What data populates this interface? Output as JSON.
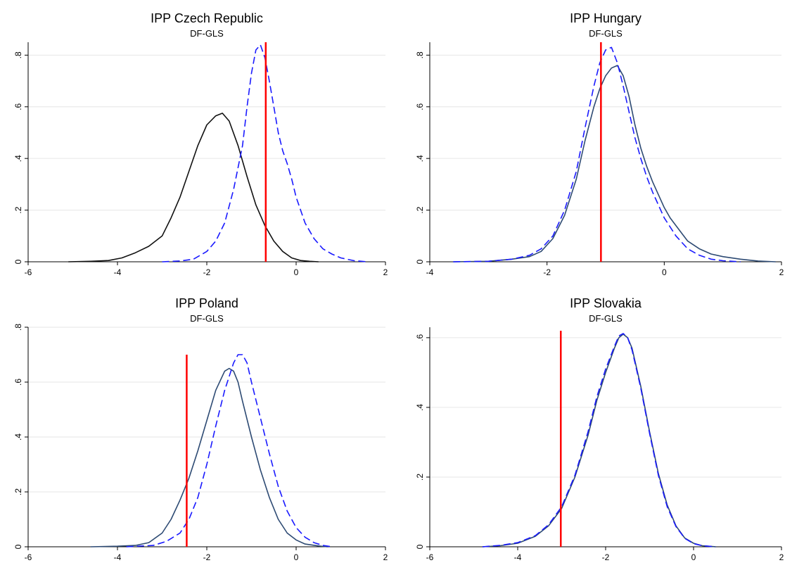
{
  "chart_data": [
    {
      "type": "line",
      "title": "IPP Czech Republic",
      "subtitle": "DF-GLS",
      "xlim": [
        -6,
        2
      ],
      "ylim": [
        0,
        0.85
      ],
      "xticks": [
        -6,
        -4,
        -2,
        0,
        2
      ],
      "xtick_labels": [
        "-6",
        "-4",
        "-2",
        "0",
        "2"
      ],
      "yticks": [
        0,
        0.2,
        0.4,
        0.6,
        0.8
      ],
      "ytick_labels": [
        "0",
        ".2",
        ".4",
        ".6",
        ".8"
      ],
      "grid": "horizontal",
      "legend": "none",
      "series": [
        {
          "style": "solid",
          "color": "#111111",
          "x": [
            -5.1,
            -4.6,
            -4.2,
            -3.9,
            -3.6,
            -3.3,
            -3.0,
            -2.8,
            -2.6,
            -2.4,
            -2.2,
            -2.0,
            -1.8,
            -1.65,
            -1.5,
            -1.3,
            -1.1,
            -0.9,
            -0.7,
            -0.5,
            -0.3,
            -0.1,
            0.1,
            0.3,
            0.5
          ],
          "y": [
            0.0,
            0.002,
            0.005,
            0.015,
            0.035,
            0.06,
            0.1,
            0.17,
            0.25,
            0.35,
            0.45,
            0.53,
            0.565,
            0.575,
            0.545,
            0.45,
            0.33,
            0.22,
            0.14,
            0.08,
            0.04,
            0.015,
            0.005,
            0.002,
            0.0
          ]
        },
        {
          "style": "dashed",
          "color": "#1a1aff",
          "x": [
            -3.0,
            -2.6,
            -2.3,
            -2.0,
            -1.8,
            -1.6,
            -1.4,
            -1.2,
            -1.1,
            -1.0,
            -0.9,
            -0.8,
            -0.7,
            -0.6,
            -0.5,
            -0.4,
            -0.3,
            -0.2,
            -0.1,
            0.0,
            0.2,
            0.4,
            0.6,
            0.8,
            1.0,
            1.3,
            1.6
          ],
          "y": [
            0.0,
            0.003,
            0.01,
            0.04,
            0.08,
            0.15,
            0.28,
            0.45,
            0.6,
            0.73,
            0.82,
            0.84,
            0.79,
            0.7,
            0.6,
            0.5,
            0.43,
            0.38,
            0.32,
            0.25,
            0.15,
            0.09,
            0.05,
            0.03,
            0.015,
            0.004,
            0.0
          ]
        }
      ],
      "vline": {
        "x": -0.68,
        "y": [
          0,
          0.85
        ],
        "color": "#ff0000"
      }
    },
    {
      "type": "line",
      "title": "IPP Hungary",
      "subtitle": "DF-GLS",
      "xlim": [
        -4,
        2
      ],
      "ylim": [
        0,
        0.85
      ],
      "xticks": [
        -4,
        -2,
        0,
        2
      ],
      "xtick_labels": [
        "-4",
        "-2",
        "0",
        "2"
      ],
      "yticks": [
        0,
        0.2,
        0.4,
        0.6,
        0.8
      ],
      "ytick_labels": [
        "0",
        ".2",
        ".4",
        ".6",
        ".8"
      ],
      "grid": "horizontal",
      "legend": "none",
      "series": [
        {
          "style": "solid",
          "color": "#2d4a73",
          "x": [
            -3.6,
            -3.0,
            -2.6,
            -2.3,
            -2.1,
            -1.9,
            -1.7,
            -1.5,
            -1.35,
            -1.2,
            -1.1,
            -1.0,
            -0.9,
            -0.8,
            -0.7,
            -0.6,
            -0.5,
            -0.4,
            -0.3,
            -0.2,
            -0.1,
            0.0,
            0.1,
            0.2,
            0.3,
            0.4,
            0.6,
            0.8,
            1.0,
            1.3,
            1.6,
            1.9
          ],
          "y": [
            0.0,
            0.002,
            0.01,
            0.02,
            0.04,
            0.09,
            0.18,
            0.32,
            0.47,
            0.6,
            0.67,
            0.72,
            0.75,
            0.76,
            0.72,
            0.64,
            0.53,
            0.44,
            0.37,
            0.31,
            0.26,
            0.21,
            0.17,
            0.14,
            0.11,
            0.08,
            0.05,
            0.03,
            0.02,
            0.01,
            0.003,
            0.0
          ]
        },
        {
          "style": "dashed",
          "color": "#1a1aff",
          "x": [
            -3.6,
            -3.0,
            -2.6,
            -2.3,
            -2.1,
            -1.9,
            -1.7,
            -1.5,
            -1.35,
            -1.2,
            -1.1,
            -1.0,
            -0.9,
            -0.8,
            -0.7,
            -0.6,
            -0.5,
            -0.4,
            -0.3,
            -0.2,
            -0.1,
            0.0,
            0.2,
            0.4,
            0.6,
            0.8,
            1.0,
            1.3
          ],
          "y": [
            0.0,
            0.002,
            0.01,
            0.025,
            0.05,
            0.1,
            0.2,
            0.35,
            0.52,
            0.68,
            0.77,
            0.82,
            0.83,
            0.77,
            0.68,
            0.58,
            0.48,
            0.4,
            0.33,
            0.27,
            0.22,
            0.17,
            0.1,
            0.05,
            0.025,
            0.01,
            0.004,
            0.0
          ]
        }
      ],
      "vline": {
        "x": -1.08,
        "y": [
          0,
          0.85
        ],
        "color": "#ff0000"
      }
    },
    {
      "type": "line",
      "title": "IPP Poland",
      "subtitle": "DF-GLS",
      "xlim": [
        -6,
        2
      ],
      "ylim": [
        0,
        0.8
      ],
      "xticks": [
        -6,
        -4,
        -2,
        0,
        2
      ],
      "xtick_labels": [
        "-6",
        "-4",
        "-2",
        "0",
        "2"
      ],
      "yticks": [
        0,
        0.2,
        0.4,
        0.6,
        0.8
      ],
      "ytick_labels": [
        "0",
        ".2",
        ".4",
        ".6",
        ".8"
      ],
      "grid": "horizontal",
      "legend": "none",
      "series": [
        {
          "style": "solid",
          "color": "#2d4a73",
          "x": [
            -4.6,
            -4.0,
            -3.6,
            -3.3,
            -3.0,
            -2.8,
            -2.6,
            -2.4,
            -2.2,
            -2.0,
            -1.8,
            -1.6,
            -1.5,
            -1.4,
            -1.3,
            -1.2,
            -1.0,
            -0.8,
            -0.6,
            -0.4,
            -0.2,
            0.0,
            0.2,
            0.5,
            0.7
          ],
          "y": [
            0.0,
            0.002,
            0.005,
            0.015,
            0.05,
            0.1,
            0.17,
            0.25,
            0.35,
            0.46,
            0.57,
            0.64,
            0.65,
            0.64,
            0.6,
            0.53,
            0.4,
            0.28,
            0.18,
            0.1,
            0.05,
            0.025,
            0.01,
            0.003,
            0.0
          ]
        },
        {
          "style": "dashed",
          "color": "#1a1aff",
          "x": [
            -3.8,
            -3.2,
            -2.9,
            -2.6,
            -2.4,
            -2.2,
            -2.0,
            -1.8,
            -1.6,
            -1.4,
            -1.3,
            -1.2,
            -1.1,
            -1.0,
            -0.8,
            -0.6,
            -0.4,
            -0.2,
            0.0,
            0.2,
            0.4,
            0.6,
            0.8
          ],
          "y": [
            0.0,
            0.005,
            0.02,
            0.05,
            0.1,
            0.18,
            0.3,
            0.44,
            0.57,
            0.67,
            0.7,
            0.7,
            0.67,
            0.6,
            0.47,
            0.34,
            0.22,
            0.13,
            0.07,
            0.035,
            0.015,
            0.005,
            0.0
          ]
        }
      ],
      "vline": {
        "x": -2.45,
        "y": [
          0,
          0.7
        ],
        "color": "#ff0000"
      }
    },
    {
      "type": "line",
      "title": "IPP Slovakia",
      "subtitle": "DF-GLS",
      "xlim": [
        -6,
        2
      ],
      "ylim": [
        0,
        0.63
      ],
      "xticks": [
        -6,
        -4,
        -2,
        0,
        2
      ],
      "xtick_labels": [
        "-6",
        "-4",
        "-2",
        "0",
        "2"
      ],
      "yticks": [
        0,
        0.2,
        0.4,
        0.6
      ],
      "ytick_labels": [
        "0",
        ".2",
        ".4",
        ".6"
      ],
      "grid": "horizontal",
      "legend": "none",
      "series": [
        {
          "style": "solid",
          "color": "#2d4a73",
          "x": [
            -4.8,
            -4.4,
            -4.0,
            -3.6,
            -3.3,
            -3.0,
            -2.7,
            -2.4,
            -2.2,
            -2.0,
            -1.8,
            -1.7,
            -1.6,
            -1.5,
            -1.4,
            -1.2,
            -1.0,
            -0.8,
            -0.6,
            -0.4,
            -0.2,
            0.0,
            0.2,
            0.5
          ],
          "y": [
            0.0,
            0.003,
            0.01,
            0.03,
            0.06,
            0.11,
            0.2,
            0.32,
            0.42,
            0.5,
            0.57,
            0.6,
            0.61,
            0.6,
            0.57,
            0.46,
            0.33,
            0.21,
            0.12,
            0.06,
            0.025,
            0.01,
            0.003,
            0.0
          ]
        },
        {
          "style": "dashed",
          "color": "#1a1aff",
          "x": [
            -4.8,
            -4.4,
            -4.0,
            -3.6,
            -3.3,
            -3.0,
            -2.7,
            -2.4,
            -2.2,
            -2.0,
            -1.8,
            -1.7,
            -1.6,
            -1.5,
            -1.4,
            -1.2,
            -1.0,
            -0.8,
            -0.6,
            -0.4,
            -0.2,
            0.0,
            0.2,
            0.5
          ],
          "y": [
            0.0,
            0.004,
            0.012,
            0.032,
            0.063,
            0.115,
            0.205,
            0.33,
            0.43,
            0.51,
            0.575,
            0.605,
            0.612,
            0.6,
            0.565,
            0.455,
            0.325,
            0.205,
            0.115,
            0.058,
            0.024,
            0.009,
            0.003,
            0.0
          ]
        }
      ],
      "vline": {
        "x": -3.02,
        "y": [
          0,
          0.62
        ],
        "color": "#ff0000"
      }
    }
  ]
}
